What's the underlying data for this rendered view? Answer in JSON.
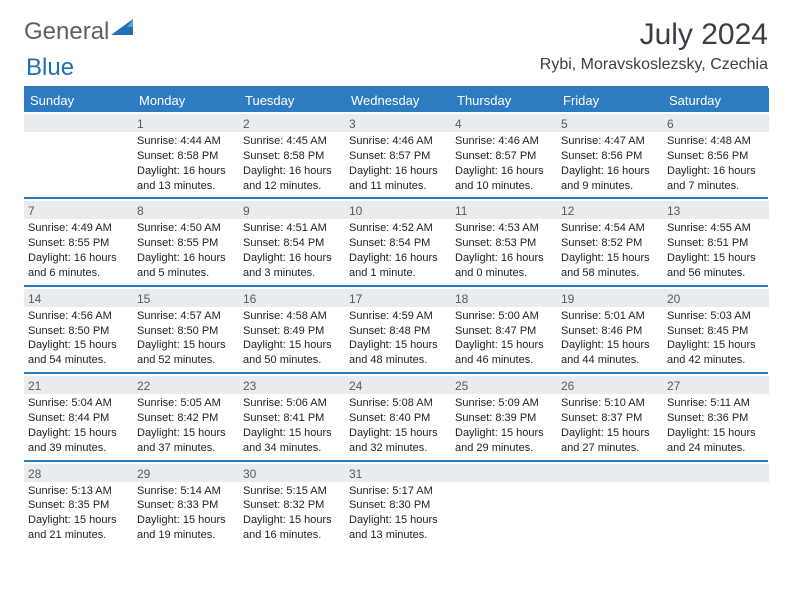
{
  "brand": {
    "part1": "General",
    "part2": "Blue"
  },
  "title": "July 2024",
  "location": "Rybi, Moravskoslezsky, Czechia",
  "colors": {
    "primary": "#2d7cc1",
    "header_text": "#ffffff",
    "daybar_bg": "#e9ecef",
    "text": "#222222"
  },
  "weekdays": [
    "Sunday",
    "Monday",
    "Tuesday",
    "Wednesday",
    "Thursday",
    "Friday",
    "Saturday"
  ],
  "weeks": [
    [
      {
        "n": "",
        "sr": "",
        "ss": "",
        "dl": ""
      },
      {
        "n": "1",
        "sr": "Sunrise: 4:44 AM",
        "ss": "Sunset: 8:58 PM",
        "dl": "Daylight: 16 hours and 13 minutes."
      },
      {
        "n": "2",
        "sr": "Sunrise: 4:45 AM",
        "ss": "Sunset: 8:58 PM",
        "dl": "Daylight: 16 hours and 12 minutes."
      },
      {
        "n": "3",
        "sr": "Sunrise: 4:46 AM",
        "ss": "Sunset: 8:57 PM",
        "dl": "Daylight: 16 hours and 11 minutes."
      },
      {
        "n": "4",
        "sr": "Sunrise: 4:46 AM",
        "ss": "Sunset: 8:57 PM",
        "dl": "Daylight: 16 hours and 10 minutes."
      },
      {
        "n": "5",
        "sr": "Sunrise: 4:47 AM",
        "ss": "Sunset: 8:56 PM",
        "dl": "Daylight: 16 hours and 9 minutes."
      },
      {
        "n": "6",
        "sr": "Sunrise: 4:48 AM",
        "ss": "Sunset: 8:56 PM",
        "dl": "Daylight: 16 hours and 7 minutes."
      }
    ],
    [
      {
        "n": "7",
        "sr": "Sunrise: 4:49 AM",
        "ss": "Sunset: 8:55 PM",
        "dl": "Daylight: 16 hours and 6 minutes."
      },
      {
        "n": "8",
        "sr": "Sunrise: 4:50 AM",
        "ss": "Sunset: 8:55 PM",
        "dl": "Daylight: 16 hours and 5 minutes."
      },
      {
        "n": "9",
        "sr": "Sunrise: 4:51 AM",
        "ss": "Sunset: 8:54 PM",
        "dl": "Daylight: 16 hours and 3 minutes."
      },
      {
        "n": "10",
        "sr": "Sunrise: 4:52 AM",
        "ss": "Sunset: 8:54 PM",
        "dl": "Daylight: 16 hours and 1 minute."
      },
      {
        "n": "11",
        "sr": "Sunrise: 4:53 AM",
        "ss": "Sunset: 8:53 PM",
        "dl": "Daylight: 16 hours and 0 minutes."
      },
      {
        "n": "12",
        "sr": "Sunrise: 4:54 AM",
        "ss": "Sunset: 8:52 PM",
        "dl": "Daylight: 15 hours and 58 minutes."
      },
      {
        "n": "13",
        "sr": "Sunrise: 4:55 AM",
        "ss": "Sunset: 8:51 PM",
        "dl": "Daylight: 15 hours and 56 minutes."
      }
    ],
    [
      {
        "n": "14",
        "sr": "Sunrise: 4:56 AM",
        "ss": "Sunset: 8:50 PM",
        "dl": "Daylight: 15 hours and 54 minutes."
      },
      {
        "n": "15",
        "sr": "Sunrise: 4:57 AM",
        "ss": "Sunset: 8:50 PM",
        "dl": "Daylight: 15 hours and 52 minutes."
      },
      {
        "n": "16",
        "sr": "Sunrise: 4:58 AM",
        "ss": "Sunset: 8:49 PM",
        "dl": "Daylight: 15 hours and 50 minutes."
      },
      {
        "n": "17",
        "sr": "Sunrise: 4:59 AM",
        "ss": "Sunset: 8:48 PM",
        "dl": "Daylight: 15 hours and 48 minutes."
      },
      {
        "n": "18",
        "sr": "Sunrise: 5:00 AM",
        "ss": "Sunset: 8:47 PM",
        "dl": "Daylight: 15 hours and 46 minutes."
      },
      {
        "n": "19",
        "sr": "Sunrise: 5:01 AM",
        "ss": "Sunset: 8:46 PM",
        "dl": "Daylight: 15 hours and 44 minutes."
      },
      {
        "n": "20",
        "sr": "Sunrise: 5:03 AM",
        "ss": "Sunset: 8:45 PM",
        "dl": "Daylight: 15 hours and 42 minutes."
      }
    ],
    [
      {
        "n": "21",
        "sr": "Sunrise: 5:04 AM",
        "ss": "Sunset: 8:44 PM",
        "dl": "Daylight: 15 hours and 39 minutes."
      },
      {
        "n": "22",
        "sr": "Sunrise: 5:05 AM",
        "ss": "Sunset: 8:42 PM",
        "dl": "Daylight: 15 hours and 37 minutes."
      },
      {
        "n": "23",
        "sr": "Sunrise: 5:06 AM",
        "ss": "Sunset: 8:41 PM",
        "dl": "Daylight: 15 hours and 34 minutes."
      },
      {
        "n": "24",
        "sr": "Sunrise: 5:08 AM",
        "ss": "Sunset: 8:40 PM",
        "dl": "Daylight: 15 hours and 32 minutes."
      },
      {
        "n": "25",
        "sr": "Sunrise: 5:09 AM",
        "ss": "Sunset: 8:39 PM",
        "dl": "Daylight: 15 hours and 29 minutes."
      },
      {
        "n": "26",
        "sr": "Sunrise: 5:10 AM",
        "ss": "Sunset: 8:37 PM",
        "dl": "Daylight: 15 hours and 27 minutes."
      },
      {
        "n": "27",
        "sr": "Sunrise: 5:11 AM",
        "ss": "Sunset: 8:36 PM",
        "dl": "Daylight: 15 hours and 24 minutes."
      }
    ],
    [
      {
        "n": "28",
        "sr": "Sunrise: 5:13 AM",
        "ss": "Sunset: 8:35 PM",
        "dl": "Daylight: 15 hours and 21 minutes."
      },
      {
        "n": "29",
        "sr": "Sunrise: 5:14 AM",
        "ss": "Sunset: 8:33 PM",
        "dl": "Daylight: 15 hours and 19 minutes."
      },
      {
        "n": "30",
        "sr": "Sunrise: 5:15 AM",
        "ss": "Sunset: 8:32 PM",
        "dl": "Daylight: 15 hours and 16 minutes."
      },
      {
        "n": "31",
        "sr": "Sunrise: 5:17 AM",
        "ss": "Sunset: 8:30 PM",
        "dl": "Daylight: 15 hours and 13 minutes."
      },
      {
        "n": "",
        "sr": "",
        "ss": "",
        "dl": ""
      },
      {
        "n": "",
        "sr": "",
        "ss": "",
        "dl": ""
      },
      {
        "n": "",
        "sr": "",
        "ss": "",
        "dl": ""
      }
    ]
  ]
}
